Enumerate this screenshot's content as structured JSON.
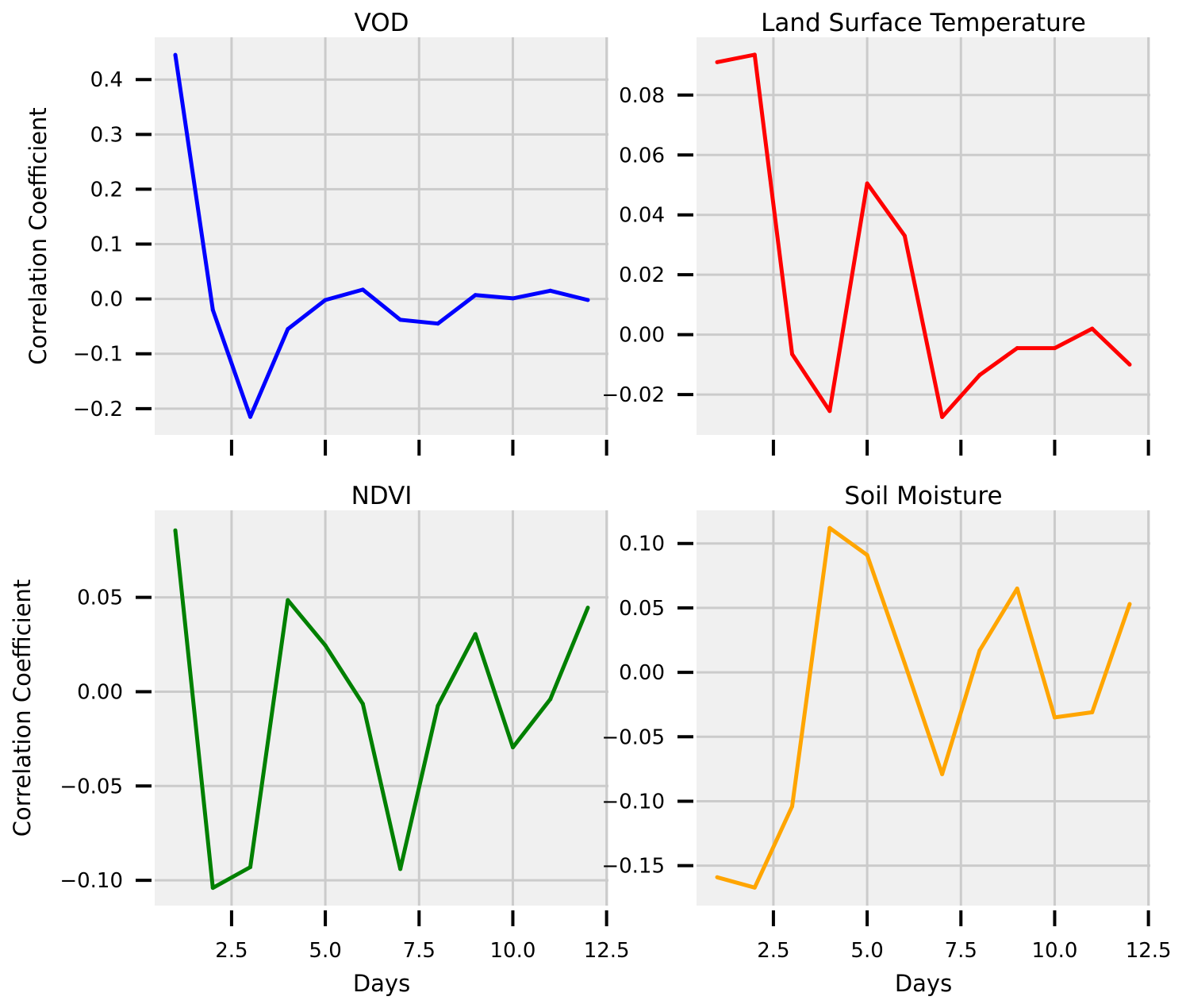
{
  "figure": {
    "xlabel": "Days",
    "ylabel": "Correlation Coefficient"
  },
  "chart_data": [
    {
      "type": "line",
      "title": "VOD",
      "color": "#0000ff",
      "x": [
        1,
        2,
        3,
        4,
        5,
        6,
        7,
        8,
        9,
        10,
        11,
        12
      ],
      "values": [
        0.445,
        -0.02,
        -0.215,
        -0.055,
        -0.002,
        0.017,
        -0.038,
        -0.045,
        0.007,
        0.001,
        0.015,
        -0.002
      ],
      "xlim": [
        0.45,
        12.55
      ],
      "ylim": [
        -0.248,
        0.477
      ],
      "yticks": [
        -0.2,
        -0.1,
        0.0,
        0.1,
        0.2,
        0.3,
        0.4
      ],
      "ytick_labels": [
        "−0.2",
        "−0.1",
        "0.0",
        "0.1",
        "0.2",
        "0.3",
        "0.4"
      ],
      "xticks": [
        2.5,
        5.0,
        7.5,
        10.0,
        12.5
      ],
      "xtick_labels": [],
      "xlabel": "",
      "ylabel": "Correlation Coefficient",
      "grid": true
    },
    {
      "type": "line",
      "title": "Land Surface Temperature",
      "color": "#ff0000",
      "x": [
        1,
        2,
        3,
        4,
        5,
        6,
        7,
        8,
        9,
        10,
        11,
        12
      ],
      "values": [
        0.091,
        0.0935,
        -0.0065,
        -0.0255,
        0.0505,
        0.033,
        -0.0275,
        -0.0135,
        -0.0045,
        -0.0045,
        0.002,
        -0.01
      ],
      "xlim": [
        0.45,
        12.55
      ],
      "ylim": [
        -0.0335,
        0.0993
      ],
      "yticks": [
        -0.02,
        0.0,
        0.02,
        0.04,
        0.06,
        0.08
      ],
      "ytick_labels": [
        "−0.02",
        "0.00",
        "0.02",
        "0.04",
        "0.06",
        "0.08"
      ],
      "xticks": [
        2.5,
        5.0,
        7.5,
        10.0,
        12.5
      ],
      "xtick_labels": [],
      "xlabel": "",
      "ylabel": "",
      "grid": true
    },
    {
      "type": "line",
      "title": "NDVI",
      "color": "#008000",
      "x": [
        1,
        2,
        3,
        4,
        5,
        6,
        7,
        8,
        9,
        10,
        11,
        12
      ],
      "values": [
        0.0855,
        -0.104,
        -0.093,
        0.0485,
        0.0245,
        -0.0065,
        -0.094,
        -0.0075,
        0.0305,
        -0.0295,
        -0.004,
        0.0445
      ],
      "xlim": [
        0.45,
        12.55
      ],
      "ylim": [
        -0.1134,
        0.0961
      ],
      "yticks": [
        -0.1,
        -0.05,
        0.0,
        0.05
      ],
      "ytick_labels": [
        "−0.10",
        "−0.05",
        "0.00",
        "0.05"
      ],
      "xticks": [
        2.5,
        5.0,
        7.5,
        10.0,
        12.5
      ],
      "xtick_labels": [
        "2.5",
        "5.0",
        "7.5",
        "10.0",
        "12.5"
      ],
      "xlabel": "Days",
      "ylabel": "Correlation Coefficient",
      "grid": true
    },
    {
      "type": "line",
      "title": "Soil Moisture",
      "color": "#ffa500",
      "x": [
        1,
        2,
        3,
        4,
        5,
        6,
        7,
        8,
        9,
        10,
        11,
        12
      ],
      "values": [
        -0.159,
        -0.167,
        -0.104,
        0.112,
        0.091,
        0.007,
        -0.079,
        0.017,
        0.065,
        -0.035,
        -0.031,
        0.053
      ],
      "xlim": [
        0.45,
        12.55
      ],
      "ylim": [
        -0.181,
        0.1257
      ],
      "yticks": [
        -0.15,
        -0.1,
        -0.05,
        0.0,
        0.05,
        0.1
      ],
      "ytick_labels": [
        "−0.15",
        "−0.10",
        "−0.05",
        "0.00",
        "0.05",
        "0.10"
      ],
      "xticks": [
        2.5,
        5.0,
        7.5,
        10.0,
        12.5
      ],
      "xtick_labels": [
        "2.5",
        "5.0",
        "7.5",
        "10.0",
        "12.5"
      ],
      "xlabel": "Days",
      "ylabel": "",
      "grid": true
    }
  ]
}
